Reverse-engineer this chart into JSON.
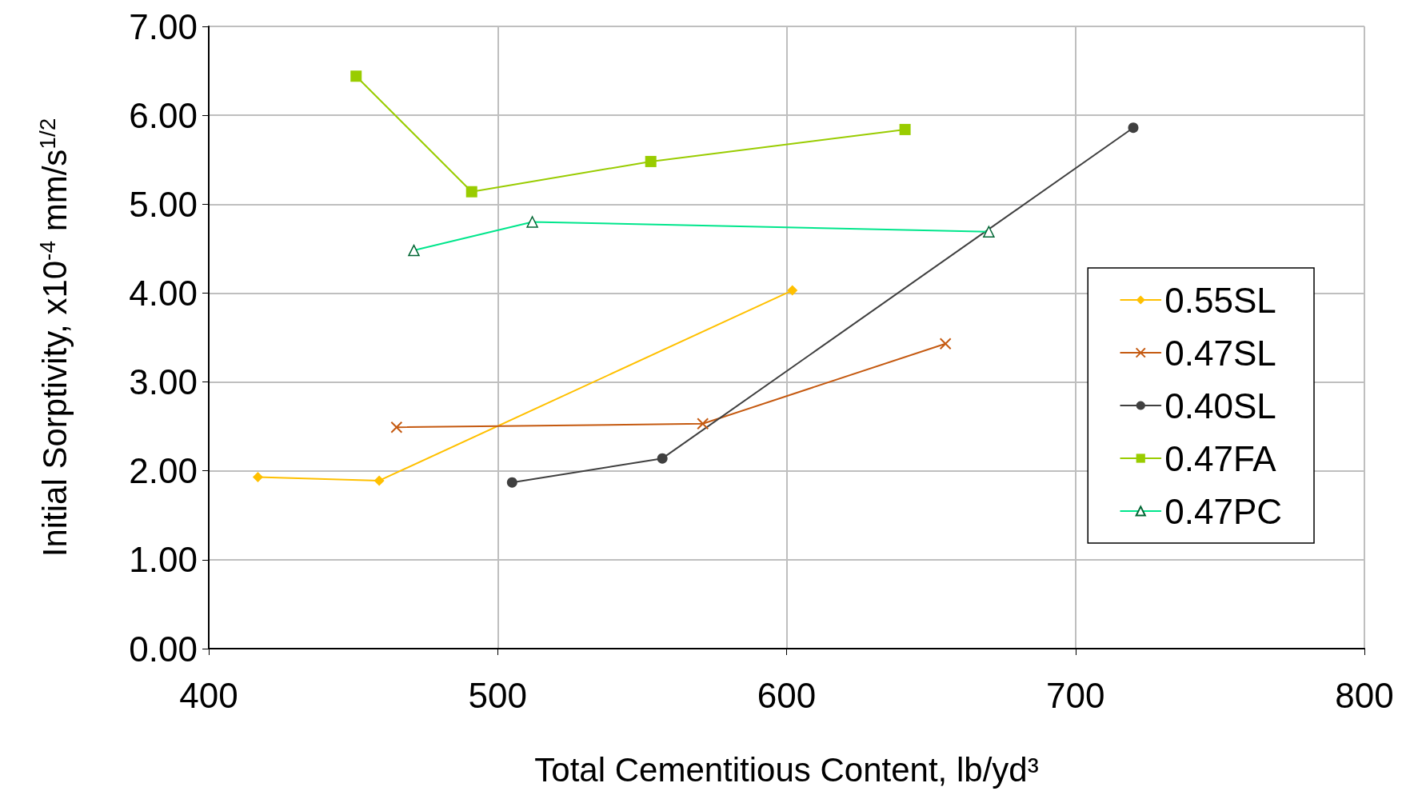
{
  "chart_data": {
    "type": "line",
    "xlabel": "Total Cementitious Content, lb/yd³",
    "ylabel": "Initial Sorptivity, x10$^{-4}$ mm/s$^{1/2}$",
    "xlim": [
      400,
      800
    ],
    "xticks": [
      400,
      500,
      600,
      700,
      800
    ],
    "ylim": [
      0,
      7
    ],
    "yticks": [
      {
        "value": 0,
        "label": "0.00"
      },
      {
        "value": 1,
        "label": "1.00"
      },
      {
        "value": 2,
        "label": "2.00"
      },
      {
        "value": 3,
        "label": "3.00"
      },
      {
        "value": 4,
        "label": "4.00"
      },
      {
        "value": 5,
        "label": "5.00"
      },
      {
        "value": 6,
        "label": "6.00"
      },
      {
        "value": 7,
        "label": "7.00"
      }
    ],
    "grid": true,
    "legend": "right",
    "line_style": "solid",
    "series": [
      {
        "name": "0.55SL",
        "color": "#ffc000",
        "marker": "diamond",
        "x": [
          417,
          459,
          602
        ],
        "values": [
          1.93,
          1.89,
          4.03
        ]
      },
      {
        "name": "0.47SL",
        "color": "#c55a11",
        "marker": "cross",
        "x": [
          465,
          571,
          655
        ],
        "values": [
          2.49,
          2.53,
          3.43
        ]
      },
      {
        "name": "0.40SL",
        "color": "#404040",
        "marker": "circle",
        "x": [
          505,
          557,
          720
        ],
        "values": [
          1.87,
          2.14,
          5.86
        ]
      },
      {
        "name": "0.47FA",
        "color": "#99cc00",
        "marker": "square",
        "x": [
          451,
          491,
          553,
          641
        ],
        "values": [
          6.44,
          5.14,
          5.48,
          5.84
        ]
      },
      {
        "name": "0.47PC",
        "color": "#00e68c",
        "marker": "triangle",
        "x": [
          471,
          512,
          670
        ],
        "values": [
          4.48,
          4.8,
          4.69
        ]
      }
    ]
  }
}
